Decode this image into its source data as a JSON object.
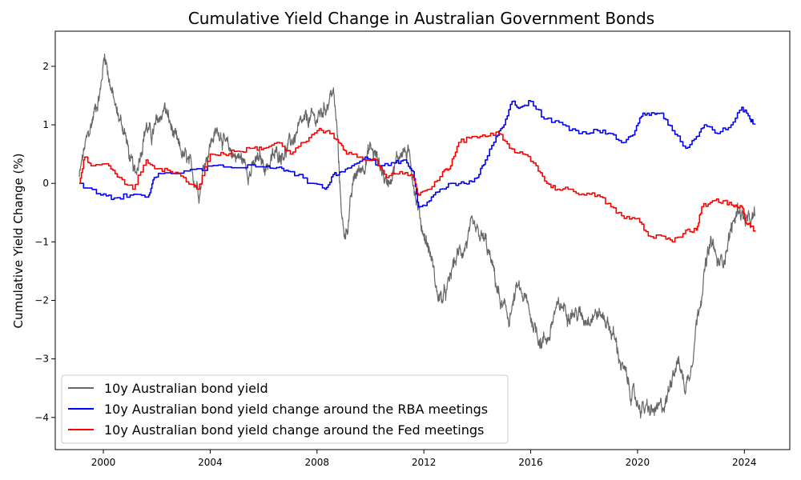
{
  "chart_data": {
    "type": "line",
    "title": "Cumulative Yield Change in Australian Government Bonds",
    "xlabel": "",
    "ylabel": "Cumulative Yield Change (%)",
    "xlim": [
      1998.2,
      2025.7
    ],
    "ylim": [
      -4.55,
      2.6
    ],
    "x_ticks": [
      2000,
      2004,
      2008,
      2012,
      2016,
      2020,
      2024
    ],
    "x_tick_labels": [
      "2000",
      "2004",
      "2008",
      "2012",
      "2016",
      "2020",
      "2024"
    ],
    "y_ticks": [
      2,
      1,
      0,
      -1,
      -2,
      -3,
      -4
    ],
    "y_tick_labels": [
      "2",
      "1",
      "0",
      "−1",
      "−2",
      "−3",
      "−4"
    ],
    "grid": false,
    "legend_position": "lower-left",
    "series": [
      {
        "name": "10y Australian bond yield",
        "color": "#666666",
        "style": "noisy",
        "points": [
          [
            1999.1,
            0.1
          ],
          [
            1999.3,
            0.6
          ],
          [
            1999.5,
            0.9
          ],
          [
            1999.7,
            1.3
          ],
          [
            1999.9,
            1.6
          ],
          [
            2000.05,
            2.25
          ],
          [
            2000.3,
            1.6
          ],
          [
            2000.5,
            1.2
          ],
          [
            2000.8,
            0.9
          ],
          [
            2001.0,
            0.4
          ],
          [
            2001.2,
            0.1
          ],
          [
            2001.4,
            0.6
          ],
          [
            2001.6,
            1.0
          ],
          [
            2001.8,
            0.8
          ],
          [
            2002.0,
            1.0
          ],
          [
            2002.3,
            1.3
          ],
          [
            2002.5,
            1.0
          ],
          [
            2002.8,
            0.6
          ],
          [
            2003.1,
            0.4
          ],
          [
            2003.4,
            0.1
          ],
          [
            2003.6,
            -0.1
          ],
          [
            2003.8,
            0.4
          ],
          [
            2004.1,
            0.8
          ],
          [
            2004.4,
            0.9
          ],
          [
            2004.6,
            0.6
          ],
          [
            2004.9,
            0.5
          ],
          [
            2005.2,
            0.4
          ],
          [
            2005.5,
            0.2
          ],
          [
            2005.8,
            0.4
          ],
          [
            2006.1,
            0.3
          ],
          [
            2006.5,
            0.5
          ],
          [
            2006.9,
            0.6
          ],
          [
            2007.3,
            0.9
          ],
          [
            2007.7,
            1.1
          ],
          [
            2008.0,
            1.1
          ],
          [
            2008.3,
            1.3
          ],
          [
            2008.6,
            1.6
          ],
          [
            2008.75,
            0.9
          ],
          [
            2008.85,
            0.0
          ],
          [
            2009.0,
            -0.9
          ],
          [
            2009.15,
            -0.7
          ],
          [
            2009.4,
            0.1
          ],
          [
            2009.7,
            0.3
          ],
          [
            2010.0,
            0.6
          ],
          [
            2010.3,
            0.4
          ],
          [
            2010.6,
            0.0
          ],
          [
            2010.9,
            0.3
          ],
          [
            2011.2,
            0.6
          ],
          [
            2011.5,
            0.4
          ],
          [
            2011.7,
            -0.2
          ],
          [
            2011.9,
            -0.7
          ],
          [
            2012.1,
            -1.0
          ],
          [
            2012.3,
            -1.3
          ],
          [
            2012.5,
            -1.9
          ],
          [
            2012.7,
            -2.0
          ],
          [
            2012.9,
            -1.8
          ],
          [
            2013.1,
            -1.4
          ],
          [
            2013.3,
            -1.2
          ],
          [
            2013.5,
            -1.1
          ],
          [
            2013.8,
            -0.8
          ],
          [
            2014.0,
            -0.9
          ],
          [
            2014.3,
            -1.0
          ],
          [
            2014.6,
            -1.5
          ],
          [
            2014.9,
            -2.1
          ],
          [
            2015.2,
            -2.3
          ],
          [
            2015.5,
            -1.8
          ],
          [
            2015.8,
            -2.0
          ],
          [
            2016.1,
            -2.4
          ],
          [
            2016.4,
            -2.7
          ],
          [
            2016.7,
            -2.6
          ],
          [
            2016.9,
            -2.2
          ],
          [
            2017.2,
            -2.1
          ],
          [
            2017.6,
            -2.2
          ],
          [
            2018.0,
            -2.3
          ],
          [
            2018.4,
            -2.2
          ],
          [
            2018.8,
            -2.3
          ],
          [
            2019.1,
            -2.6
          ],
          [
            2019.4,
            -3.1
          ],
          [
            2019.7,
            -3.5
          ],
          [
            2019.9,
            -3.7
          ],
          [
            2020.1,
            -3.8
          ],
          [
            2020.4,
            -3.9
          ],
          [
            2020.8,
            -3.9
          ],
          [
            2021.1,
            -3.7
          ],
          [
            2021.3,
            -3.2
          ],
          [
            2021.5,
            -3.0
          ],
          [
            2021.8,
            -3.5
          ],
          [
            2022.0,
            -3.1
          ],
          [
            2022.2,
            -2.4
          ],
          [
            2022.4,
            -1.8
          ],
          [
            2022.6,
            -1.3
          ],
          [
            2022.8,
            -1.0
          ],
          [
            2023.0,
            -1.4
          ],
          [
            2023.2,
            -1.3
          ],
          [
            2023.5,
            -0.8
          ],
          [
            2023.8,
            -0.4
          ],
          [
            2024.0,
            -0.6
          ],
          [
            2024.2,
            -0.7
          ],
          [
            2024.4,
            -0.6
          ]
        ]
      },
      {
        "name": "10y Australian bond yield change around the RBA meetings",
        "color": "#0000ff",
        "style": "step",
        "points": [
          [
            1999.1,
            0.0
          ],
          [
            1999.9,
            -0.2
          ],
          [
            2000.4,
            -0.25
          ],
          [
            2001.0,
            -0.2
          ],
          [
            2001.7,
            -0.2
          ],
          [
            2001.9,
            0.1
          ],
          [
            2002.3,
            0.18
          ],
          [
            2003.5,
            0.25
          ],
          [
            2004.5,
            0.28
          ],
          [
            2006.0,
            0.28
          ],
          [
            2006.6,
            0.28
          ],
          [
            2007.0,
            0.2
          ],
          [
            2007.8,
            0.0
          ],
          [
            2008.3,
            -0.1
          ],
          [
            2008.6,
            0.15
          ],
          [
            2008.9,
            0.2
          ],
          [
            2009.3,
            0.3
          ],
          [
            2009.8,
            0.45
          ],
          [
            2010.3,
            0.3
          ],
          [
            2010.9,
            0.35
          ],
          [
            2011.3,
            0.4
          ],
          [
            2011.6,
            0.2
          ],
          [
            2011.8,
            -0.4
          ],
          [
            2012.2,
            -0.3
          ],
          [
            2012.6,
            -0.1
          ],
          [
            2013.0,
            0.0
          ],
          [
            2013.5,
            0.0
          ],
          [
            2014.0,
            0.1
          ],
          [
            2014.3,
            0.4
          ],
          [
            2014.7,
            0.8
          ],
          [
            2015.0,
            1.0
          ],
          [
            2015.3,
            1.4
          ],
          [
            2015.6,
            1.3
          ],
          [
            2016.0,
            1.4
          ],
          [
            2016.5,
            1.1
          ],
          [
            2017.2,
            1.0
          ],
          [
            2017.8,
            0.85
          ],
          [
            2018.5,
            0.9
          ],
          [
            2019.0,
            0.85
          ],
          [
            2019.5,
            0.7
          ],
          [
            2019.9,
            0.9
          ],
          [
            2020.2,
            1.2
          ],
          [
            2020.6,
            1.2
          ],
          [
            2020.9,
            1.2
          ],
          [
            2021.3,
            0.9
          ],
          [
            2021.8,
            0.6
          ],
          [
            2022.2,
            0.8
          ],
          [
            2022.5,
            1.0
          ],
          [
            2023.0,
            0.85
          ],
          [
            2023.5,
            1.0
          ],
          [
            2023.9,
            1.3
          ],
          [
            2024.2,
            1.1
          ],
          [
            2024.4,
            1.02
          ]
        ]
      },
      {
        "name": "10y Australian bond yield change around the Fed meetings",
        "color": "#ff0000",
        "style": "step",
        "points": [
          [
            1999.1,
            0.0
          ],
          [
            1999.3,
            0.45
          ],
          [
            1999.6,
            0.3
          ],
          [
            2000.2,
            0.3
          ],
          [
            2000.6,
            0.1
          ],
          [
            2001.1,
            -0.1
          ],
          [
            2001.6,
            0.4
          ],
          [
            2002.0,
            0.25
          ],
          [
            2002.5,
            0.2
          ],
          [
            2003.0,
            0.1
          ],
          [
            2003.5,
            -0.1
          ],
          [
            2004.0,
            0.5
          ],
          [
            2004.5,
            0.5
          ],
          [
            2005.0,
            0.55
          ],
          [
            2005.6,
            0.6
          ],
          [
            2006.0,
            0.6
          ],
          [
            2006.5,
            0.7
          ],
          [
            2007.0,
            0.5
          ],
          [
            2007.5,
            0.7
          ],
          [
            2008.0,
            0.9
          ],
          [
            2008.4,
            0.9
          ],
          [
            2008.8,
            0.7
          ],
          [
            2009.1,
            0.5
          ],
          [
            2009.6,
            0.45
          ],
          [
            2010.2,
            0.4
          ],
          [
            2010.6,
            0.1
          ],
          [
            2011.1,
            0.2
          ],
          [
            2011.6,
            0.1
          ],
          [
            2011.8,
            -0.2
          ],
          [
            2012.2,
            -0.1
          ],
          [
            2012.7,
            0.2
          ],
          [
            2013.0,
            0.3
          ],
          [
            2013.3,
            0.7
          ],
          [
            2013.8,
            0.8
          ],
          [
            2014.3,
            0.8
          ],
          [
            2014.8,
            0.85
          ],
          [
            2015.2,
            0.6
          ],
          [
            2015.7,
            0.5
          ],
          [
            2016.2,
            0.3
          ],
          [
            2016.6,
            0.0
          ],
          [
            2017.0,
            -0.1
          ],
          [
            2017.5,
            -0.1
          ],
          [
            2018.0,
            -0.2
          ],
          [
            2018.5,
            -0.2
          ],
          [
            2019.0,
            -0.4
          ],
          [
            2019.5,
            -0.6
          ],
          [
            2020.0,
            -0.6
          ],
          [
            2020.4,
            -0.9
          ],
          [
            2020.9,
            -0.9
          ],
          [
            2021.3,
            -1.0
          ],
          [
            2021.8,
            -0.8
          ],
          [
            2022.2,
            -0.8
          ],
          [
            2022.4,
            -0.4
          ],
          [
            2022.8,
            -0.3
          ],
          [
            2023.2,
            -0.3
          ],
          [
            2023.6,
            -0.4
          ],
          [
            2023.9,
            -0.4
          ],
          [
            2024.1,
            -0.7
          ],
          [
            2024.4,
            -0.8
          ]
        ]
      }
    ]
  }
}
